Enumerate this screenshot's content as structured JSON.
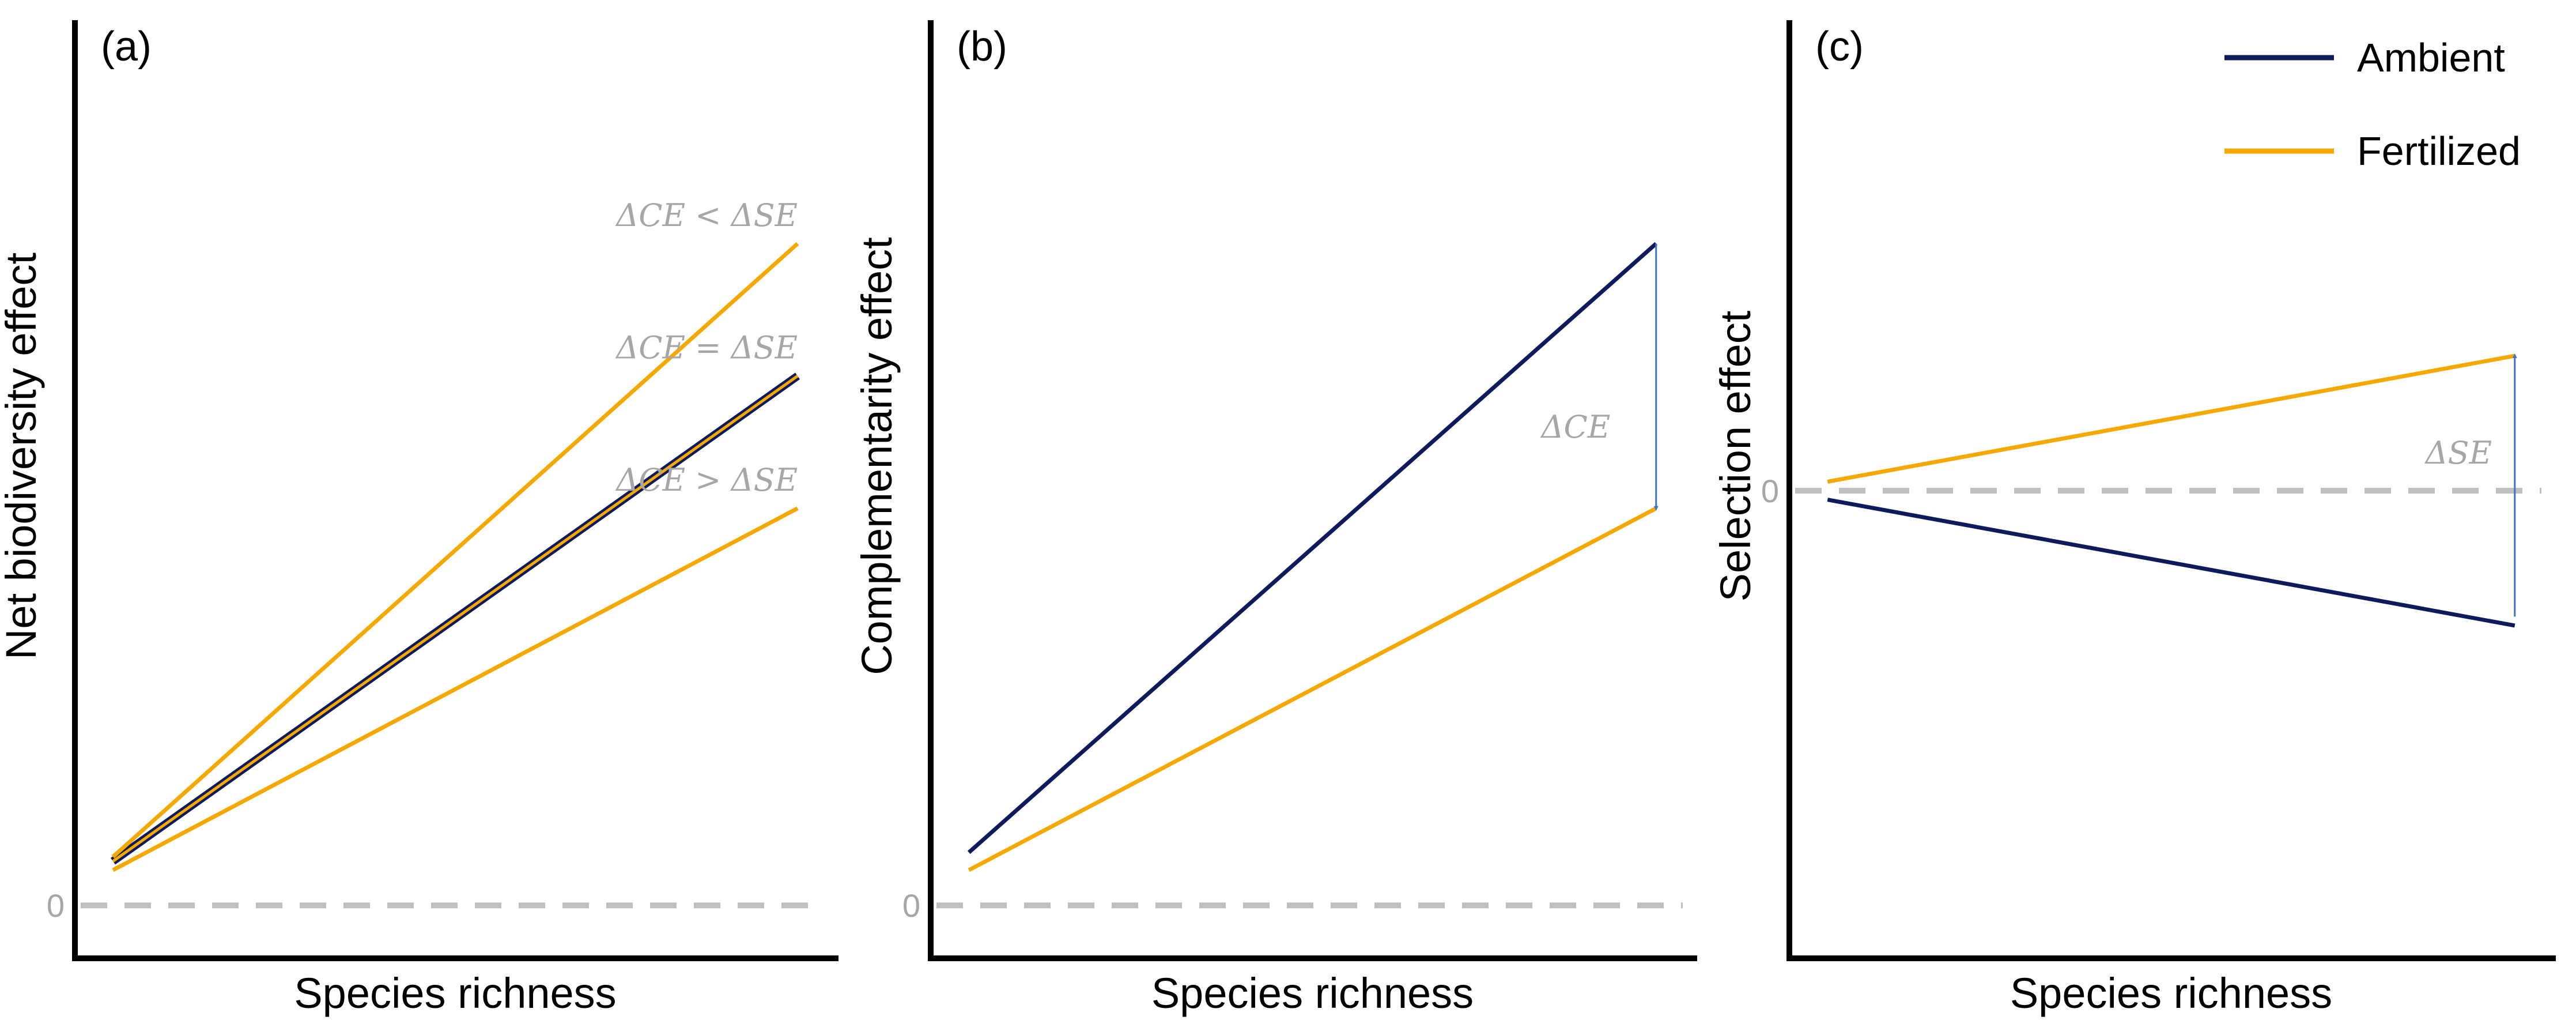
{
  "colors": {
    "ambient": "#0d1a5c",
    "fertilized": "#f5a800",
    "arrow": "#4472c4",
    "zero": "#bfbfbf",
    "annotation": "#a6a6a6"
  },
  "legend": {
    "placement": "top-right",
    "items": [
      {
        "label": "Ambient",
        "color": "#0d1a5c"
      },
      {
        "label": "Fertilized",
        "color": "#f5a800"
      }
    ]
  },
  "chart_data": [
    {
      "type": "line",
      "panel_label": "(a)",
      "xlabel": "Species richness",
      "ylabel": "Net biodiversity effect",
      "xlim": [
        0,
        10
      ],
      "ylim": [
        -0.6,
        10
      ],
      "zero_line": {
        "y": 0,
        "label": "0"
      },
      "series": [
        {
          "name": "Ambient",
          "color": "#0d1a5c",
          "x": [
            0.5,
            9.5
          ],
          "y": [
            0.5,
            6
          ]
        },
        {
          "name": "Fertilized",
          "color": "#f5a800",
          "x": [
            0.5,
            9.5
          ],
          "y": [
            0.5,
            6
          ]
        },
        {
          "name": "Fertilized",
          "color": "#f5a800",
          "x": [
            0.5,
            9.5
          ],
          "y": [
            0.55,
            7.5
          ]
        },
        {
          "name": "Fertilized",
          "color": "#f5a800",
          "x": [
            0.5,
            9.5
          ],
          "y": [
            0.4,
            4.5
          ]
        }
      ],
      "annotations": [
        {
          "text": "ΔCE < ΔSE",
          "x": 9.5,
          "y": 7.7
        },
        {
          "text": "ΔCE = ΔSE",
          "x": 9.5,
          "y": 6.2
        },
        {
          "text": "ΔCE > ΔSE",
          "x": 9.5,
          "y": 4.7
        }
      ]
    },
    {
      "type": "line",
      "panel_label": "(b)",
      "xlabel": "Species richness",
      "ylabel": "Complementarity effect",
      "xlim": [
        0,
        10
      ],
      "ylim": [
        -0.6,
        10
      ],
      "zero_line": {
        "y": 0,
        "label": "0"
      },
      "series": [
        {
          "name": "Ambient",
          "color": "#0d1a5c",
          "x": [
            0.5,
            9.5
          ],
          "y": [
            0.6,
            7.5
          ]
        },
        {
          "name": "Fertilized",
          "color": "#f5a800",
          "x": [
            0.5,
            9.5
          ],
          "y": [
            0.4,
            4.5
          ]
        }
      ],
      "arrows": [
        {
          "x": 9.5,
          "y_from": 7.5,
          "y_to": 4.5,
          "text": "ΔCE",
          "text_x": 8.9,
          "text_y": 5.3
        }
      ]
    },
    {
      "type": "line",
      "panel_label": "(c)",
      "xlabel": "Species richness",
      "ylabel": "Selection effect",
      "xlim": [
        0,
        10
      ],
      "ylim": [
        -5.2,
        5.2
      ],
      "zero_line": {
        "y": 0,
        "label": "0"
      },
      "series": [
        {
          "name": "Ambient",
          "color": "#0d1a5c",
          "x": [
            0.5,
            9.5
          ],
          "y": [
            -0.1,
            -1.5
          ]
        },
        {
          "name": "Fertilized",
          "color": "#f5a800",
          "x": [
            0.5,
            9.5
          ],
          "y": [
            0.1,
            1.5
          ]
        }
      ],
      "arrows": [
        {
          "x": 9.5,
          "y_from": -1.4,
          "y_to": 1.5,
          "text": "ΔSE",
          "text_x": 9.2,
          "text_y": 0.3
        }
      ]
    }
  ]
}
